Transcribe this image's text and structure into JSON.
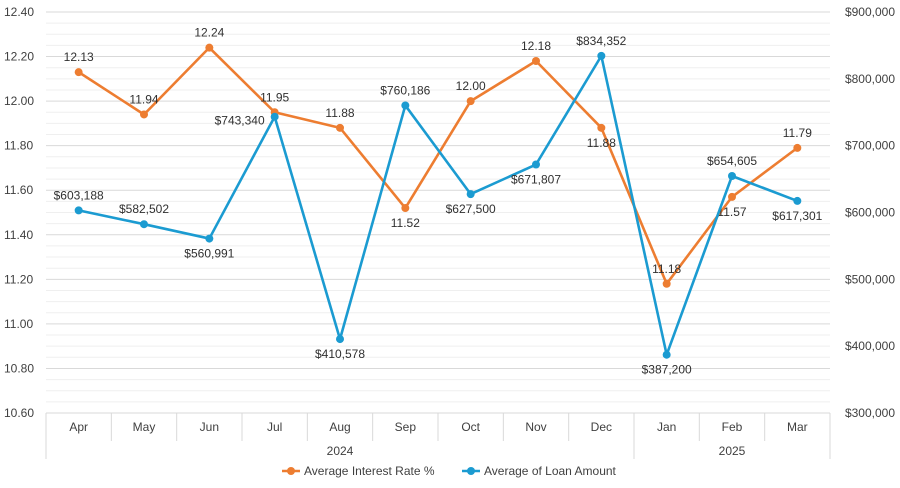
{
  "chart_data": {
    "type": "line",
    "title": "",
    "categories": [
      "Apr",
      "May",
      "Jun",
      "Jul",
      "Aug",
      "Sep",
      "Oct",
      "Nov",
      "Dec",
      "Jan",
      "Feb",
      "Mar"
    ],
    "year_groups": [
      {
        "label": "2024",
        "count": 9
      },
      {
        "label": "2025",
        "count": 3
      }
    ],
    "y_left": {
      "min": 10.6,
      "max": 12.4,
      "step": 0.2,
      "ticks": [
        "10.60",
        "10.80",
        "11.00",
        "11.20",
        "11.40",
        "11.60",
        "11.80",
        "12.00",
        "12.20",
        "12.40"
      ]
    },
    "y_right": {
      "min": 300000,
      "max": 900000,
      "step": 100000,
      "ticks": [
        "$300,000",
        "$400,000",
        "$500,000",
        "$600,000",
        "$700,000",
        "$800,000",
        "$900,000"
      ]
    },
    "series": [
      {
        "name": "Average Interest Rate %",
        "axis": "left",
        "color": "#ED7D31",
        "values": [
          12.13,
          11.94,
          12.24,
          11.95,
          11.88,
          11.52,
          12.0,
          12.18,
          11.88,
          11.18,
          11.57,
          11.79
        ],
        "labels": [
          "12.13",
          "11.94",
          "12.24",
          "11.95",
          "11.88",
          "11.52",
          "12.00",
          "12.18",
          "11.88",
          "11.18",
          "11.57",
          "11.79"
        ],
        "label_pos": [
          "above",
          "above",
          "above",
          "above",
          "above",
          "below",
          "above",
          "above",
          "below",
          "above",
          "below",
          "above"
        ]
      },
      {
        "name": "Average of Loan Amount",
        "axis": "right",
        "color": "#1B9BD1",
        "values": [
          603188,
          582502,
          560991,
          743340,
          410578,
          760186,
          627500,
          671807,
          834352,
          387200,
          654605,
          617301
        ],
        "labels": [
          "$603,188",
          "$582,502",
          "$560,991",
          "$743,340",
          "$410,578",
          "$760,186",
          "$627,500",
          "$671,807",
          "$834,352",
          "$387,200",
          "$654,605",
          "$617,301"
        ],
        "label_pos": [
          "above",
          "above",
          "below",
          "left",
          "below",
          "above",
          "below",
          "below",
          "above",
          "below",
          "above",
          "below"
        ]
      }
    ],
    "grid": true,
    "legend_position": "bottom"
  }
}
